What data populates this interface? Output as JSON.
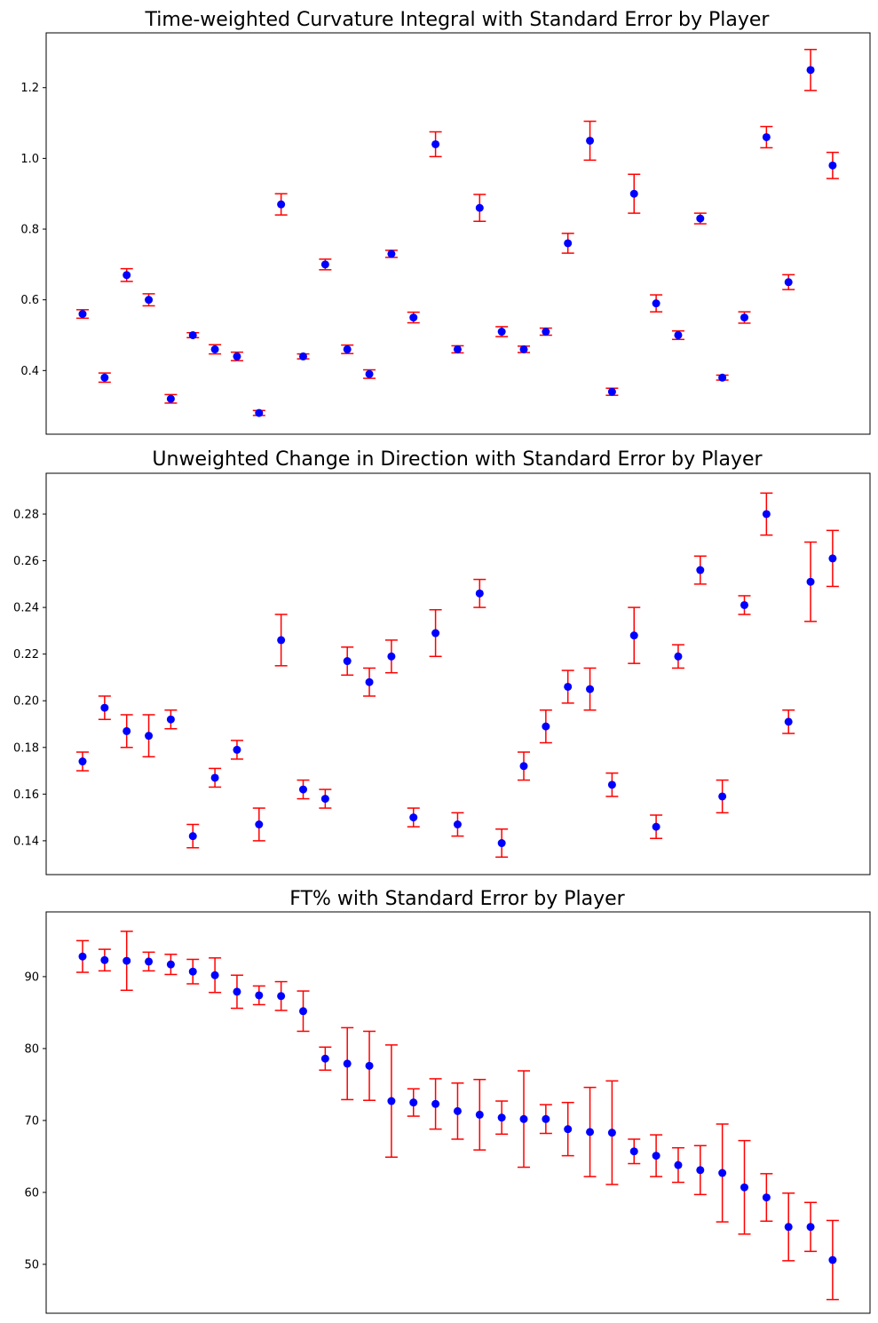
{
  "chart_data": [
    {
      "type": "scatter",
      "title": "Time-weighted Curvature Integral with Standard Error by Player",
      "xlabel": "",
      "ylabel": "",
      "ylim": [
        0.22,
        1.355
      ],
      "yticks": [
        0.4,
        0.6,
        0.8,
        1.0,
        1.2
      ],
      "ytick_labels": [
        "0.4",
        "0.6",
        "0.8",
        "1.0",
        "1.2"
      ],
      "x_ticks_visible": false,
      "grid": false,
      "marker_color": "#0000ff",
      "error_color": "#ff0000",
      "series": [
        {
          "values": [
            0.56,
            0.38,
            0.67,
            0.6,
            0.32,
            0.5,
            0.46,
            0.44,
            0.28,
            0.87,
            0.44,
            0.7,
            0.46,
            0.39,
            0.73,
            0.55,
            1.04,
            0.46,
            0.86,
            0.51,
            0.46,
            0.51,
            0.76,
            1.05,
            0.34,
            0.9,
            0.59,
            0.5,
            0.83,
            0.38,
            0.55,
            1.06,
            0.65,
            1.25,
            0.98
          ],
          "errors": [
            0.012,
            0.013,
            0.018,
            0.017,
            0.012,
            0.007,
            0.013,
            0.012,
            0.007,
            0.03,
            0.007,
            0.015,
            0.012,
            0.012,
            0.01,
            0.015,
            0.035,
            0.01,
            0.038,
            0.014,
            0.009,
            0.01,
            0.028,
            0.055,
            0.01,
            0.055,
            0.024,
            0.012,
            0.015,
            0.007,
            0.016,
            0.03,
            0.021,
            0.058,
            0.037
          ]
        }
      ]
    },
    {
      "type": "scatter",
      "title": "Unweighted Change in Direction with Standard Error by Player",
      "xlabel": "",
      "ylabel": "",
      "ylim": [
        0.1255,
        0.2975
      ],
      "yticks": [
        0.14,
        0.16,
        0.18,
        0.2,
        0.22,
        0.24,
        0.26,
        0.28
      ],
      "ytick_labels": [
        "0.14",
        "0.16",
        "0.18",
        "0.20",
        "0.22",
        "0.24",
        "0.26",
        "0.28"
      ],
      "x_ticks_visible": false,
      "grid": false,
      "marker_color": "#0000ff",
      "error_color": "#ff0000",
      "series": [
        {
          "values": [
            0.174,
            0.197,
            0.187,
            0.185,
            0.192,
            0.142,
            0.167,
            0.179,
            0.147,
            0.226,
            0.162,
            0.158,
            0.217,
            0.208,
            0.219,
            0.15,
            0.229,
            0.147,
            0.246,
            0.139,
            0.172,
            0.189,
            0.206,
            0.205,
            0.164,
            0.228,
            0.146,
            0.219,
            0.256,
            0.159,
            0.241,
            0.28,
            0.191,
            0.251,
            0.261
          ],
          "errors": [
            0.004,
            0.005,
            0.007,
            0.009,
            0.004,
            0.005,
            0.004,
            0.004,
            0.007,
            0.011,
            0.004,
            0.004,
            0.006,
            0.006,
            0.007,
            0.004,
            0.01,
            0.005,
            0.006,
            0.006,
            0.006,
            0.007,
            0.007,
            0.009,
            0.005,
            0.012,
            0.005,
            0.005,
            0.006,
            0.007,
            0.004,
            0.009,
            0.005,
            0.017,
            0.012
          ]
        }
      ]
    },
    {
      "type": "scatter",
      "title": "FT% with Standard Error by Player",
      "xlabel": "",
      "ylabel": "",
      "ylim": [
        43.2,
        99.0
      ],
      "yticks": [
        50,
        60,
        70,
        80,
        90
      ],
      "ytick_labels": [
        "50",
        "60",
        "70",
        "80",
        "90"
      ],
      "x_ticks_visible": false,
      "grid": false,
      "marker_color": "#0000ff",
      "error_color": "#ff0000",
      "series": [
        {
          "values": [
            92.8,
            92.3,
            92.2,
            92.1,
            91.7,
            90.7,
            90.2,
            87.9,
            87.4,
            87.3,
            85.2,
            78.6,
            77.9,
            77.6,
            72.7,
            72.5,
            72.3,
            71.3,
            70.8,
            70.4,
            70.2,
            70.2,
            68.8,
            68.4,
            68.3,
            65.7,
            65.1,
            63.8,
            63.1,
            62.7,
            60.7,
            59.3,
            55.2,
            55.2,
            50.6
          ],
          "errors": [
            2.2,
            1.5,
            4.1,
            1.3,
            1.4,
            1.7,
            2.4,
            2.3,
            1.3,
            2.0,
            2.8,
            1.6,
            5.0,
            4.8,
            7.8,
            1.9,
            3.5,
            3.9,
            4.9,
            2.3,
            6.7,
            2.0,
            3.7,
            6.2,
            7.2,
            1.7,
            2.9,
            2.4,
            3.4,
            6.8,
            6.5,
            3.3,
            4.7,
            3.4,
            5.5
          ]
        }
      ]
    }
  ]
}
